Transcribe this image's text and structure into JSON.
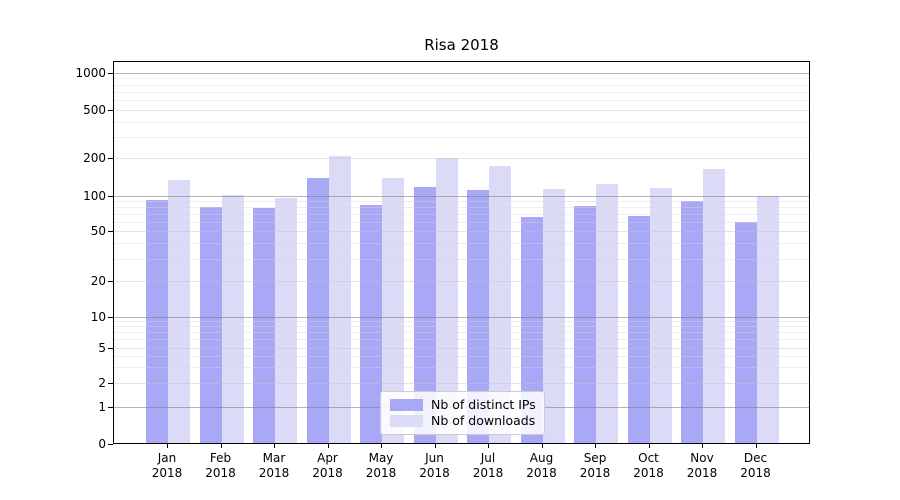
{
  "chart_data": {
    "type": "bar",
    "title": "Risa 2018",
    "categories": [
      "Jan 2018",
      "Feb 2018",
      "Mar 2018",
      "Apr 2018",
      "May 2018",
      "Jun 2018",
      "Jul 2018",
      "Aug 2018",
      "Sep 2018",
      "Oct 2018",
      "Nov 2018",
      "Dec 2018"
    ],
    "x_tick_months": [
      "Jan",
      "Feb",
      "Mar",
      "Apr",
      "May",
      "Jun",
      "Jul",
      "Aug",
      "Sep",
      "Oct",
      "Nov",
      "Dec"
    ],
    "x_tick_year": "2018",
    "series": [
      {
        "name": "Nb of distinct IPs",
        "color": "#a8a8f6",
        "values": [
          93,
          80,
          79,
          140,
          83,
          118,
          111,
          66,
          82,
          67,
          91,
          60
        ]
      },
      {
        "name": "Nb of downloads",
        "color": "#dbdbf8",
        "values": [
          135,
          102,
          96,
          210,
          138,
          202,
          175,
          113,
          125,
          116,
          165,
          100
        ]
      }
    ],
    "y_scale": "symlog",
    "y_ticks": [
      0,
      1,
      2,
      5,
      10,
      20,
      50,
      100,
      200,
      500,
      1000
    ],
    "ylim": [
      0,
      1300
    ],
    "xlabel": "",
    "ylabel": "",
    "grid": true,
    "legend_position": "lower center"
  }
}
